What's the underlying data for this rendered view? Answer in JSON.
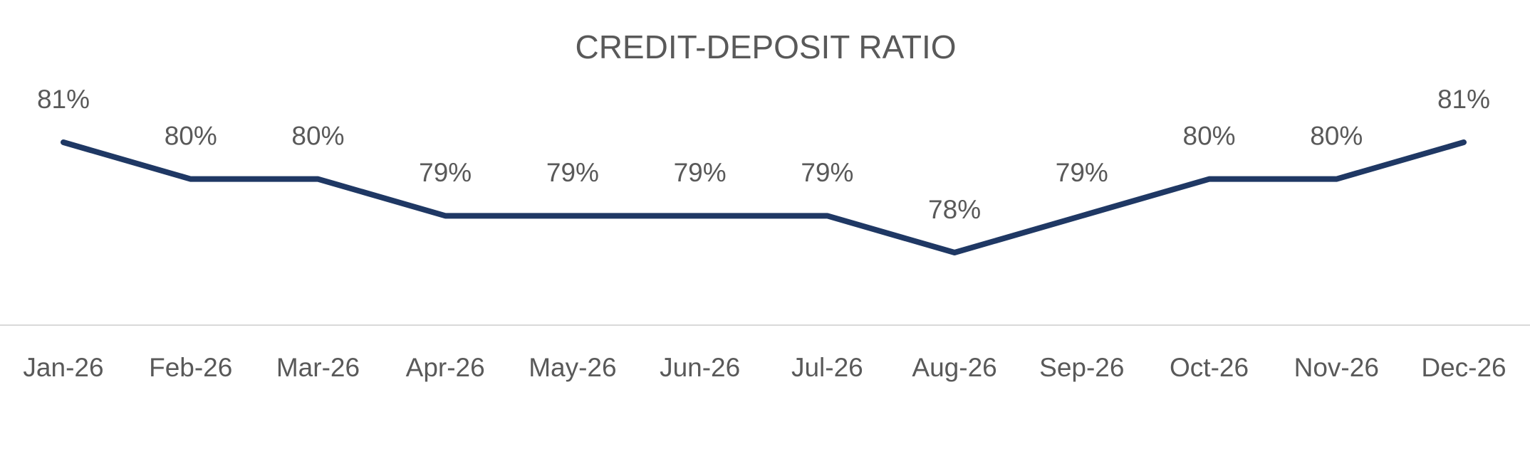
{
  "chart_data": {
    "type": "line",
    "title": "CREDIT-DEPOSIT RATIO",
    "categories": [
      "Jan-26",
      "Feb-26",
      "Mar-26",
      "Apr-26",
      "May-26",
      "Jun-26",
      "Jul-26",
      "Aug-26",
      "Sep-26",
      "Oct-26",
      "Nov-26",
      "Dec-26"
    ],
    "values": [
      81,
      80,
      80,
      79,
      79,
      79,
      79,
      78,
      79,
      80,
      80,
      81
    ],
    "value_labels": [
      "81%",
      "80%",
      "80%",
      "79%",
      "79%",
      "79%",
      "79%",
      "78%",
      "79%",
      "80%",
      "80%",
      "81%"
    ],
    "color": "#1f3864"
  }
}
